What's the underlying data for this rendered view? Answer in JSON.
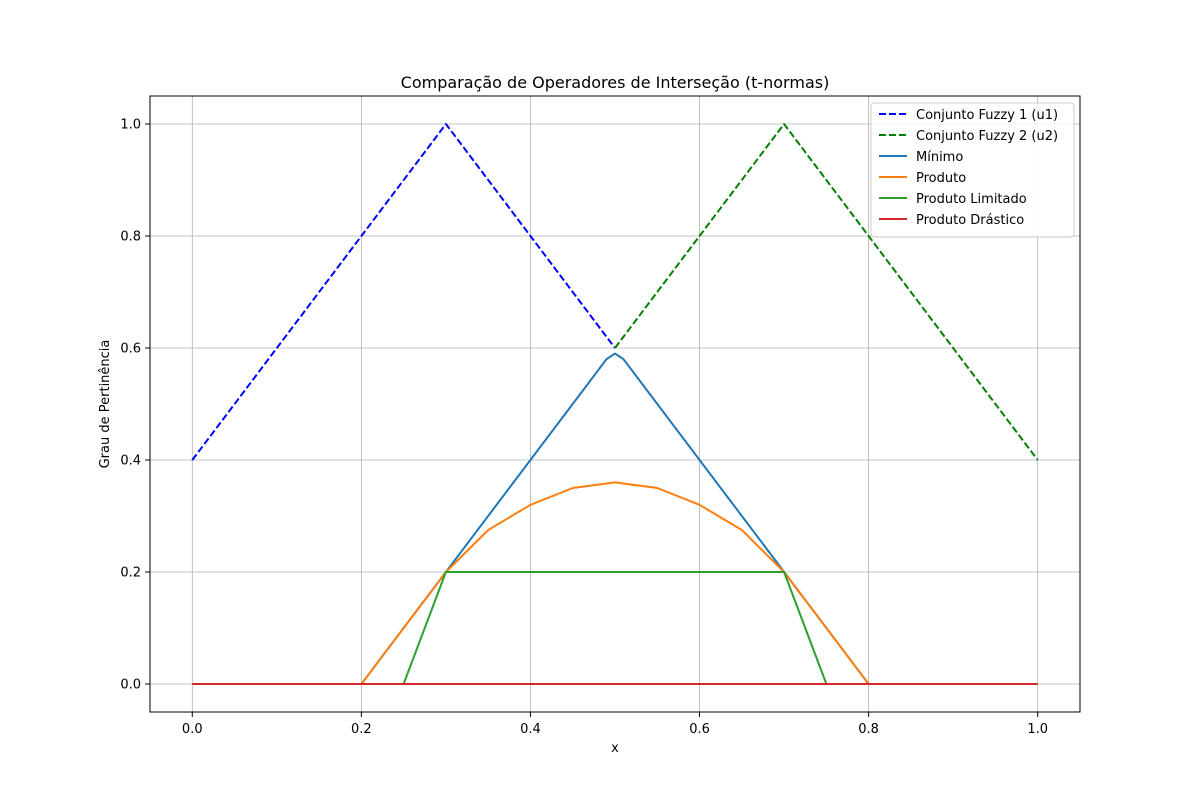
{
  "chart_data": {
    "type": "line",
    "title": "Comparação de Operadores de Interseção (t-normas)",
    "xlabel": "x",
    "ylabel": "Grau de Pertinência",
    "xlim": [
      -0.05,
      1.05
    ],
    "ylim": [
      -0.05,
      1.05
    ],
    "x_ticks": [
      0.0,
      0.2,
      0.4,
      0.6,
      0.8,
      1.0
    ],
    "y_ticks": [
      0.0,
      0.2,
      0.4,
      0.6,
      0.8,
      1.0
    ],
    "x_tick_labels": [
      "0.0",
      "0.2",
      "0.4",
      "0.6",
      "0.8",
      "1.0"
    ],
    "y_tick_labels": [
      "0.0",
      "0.2",
      "0.4",
      "0.6",
      "0.8",
      "1.0"
    ],
    "grid": true,
    "legend_position": "top-right",
    "series": [
      {
        "name": "Conjunto Fuzzy 1 (u1)",
        "color": "#0000ff",
        "dash": "dashed",
        "x": [
          0.0,
          0.29,
          0.3,
          0.31,
          0.49,
          0.5,
          0.51,
          0.69,
          0.7,
          0.71,
          0.79,
          0.8,
          0.81,
          1.0
        ],
        "y": [
          0.4,
          0.98,
          1.0,
          0.98,
          0.62,
          0.6,
          0.58,
          0.22,
          0.2,
          0.18,
          0.02,
          0.0,
          0.0,
          0.0
        ],
        "visible_until": 0.5
      },
      {
        "name": "Conjunto Fuzzy 2 (u2)",
        "color": "#008000",
        "dash": "dashed",
        "x": [
          0.5,
          0.69,
          0.7,
          0.71,
          1.0
        ],
        "y": [
          0.6,
          0.98,
          1.0,
          0.98,
          0.4
        ]
      },
      {
        "name": "Mínimo",
        "color": "#1f77b4",
        "dash": "solid",
        "x": [
          0.0,
          0.2,
          0.21,
          0.49,
          0.5,
          0.51,
          0.79,
          0.8,
          0.81,
          1.0
        ],
        "y": [
          0.0,
          0.0,
          0.02,
          0.58,
          0.59,
          0.58,
          0.02,
          0.0,
          0.0,
          0.0
        ]
      },
      {
        "name": "Produto",
        "color": "#ff7f0e",
        "dash": "solid",
        "x": [
          0.0,
          0.2,
          0.25,
          0.3,
          0.35,
          0.4,
          0.45,
          0.5,
          0.55,
          0.6,
          0.65,
          0.7,
          0.75,
          0.8,
          1.0
        ],
        "y": [
          0.0,
          0.0,
          0.1,
          0.2,
          0.275,
          0.32,
          0.35,
          0.36,
          0.35,
          0.32,
          0.275,
          0.2,
          0.1,
          0.0,
          0.0
        ]
      },
      {
        "name": "Produto Limitado",
        "color": "#2ca02c",
        "dash": "solid",
        "x": [
          0.0,
          0.25,
          0.3,
          0.7,
          0.75,
          1.0
        ],
        "y": [
          0.0,
          0.0,
          0.2,
          0.2,
          0.0,
          0.0
        ]
      },
      {
        "name": "Produto Drástico",
        "color": "#d62728",
        "dash": "solid",
        "x": [
          0.0,
          1.0
        ],
        "y": [
          0.0,
          0.0
        ]
      }
    ]
  }
}
